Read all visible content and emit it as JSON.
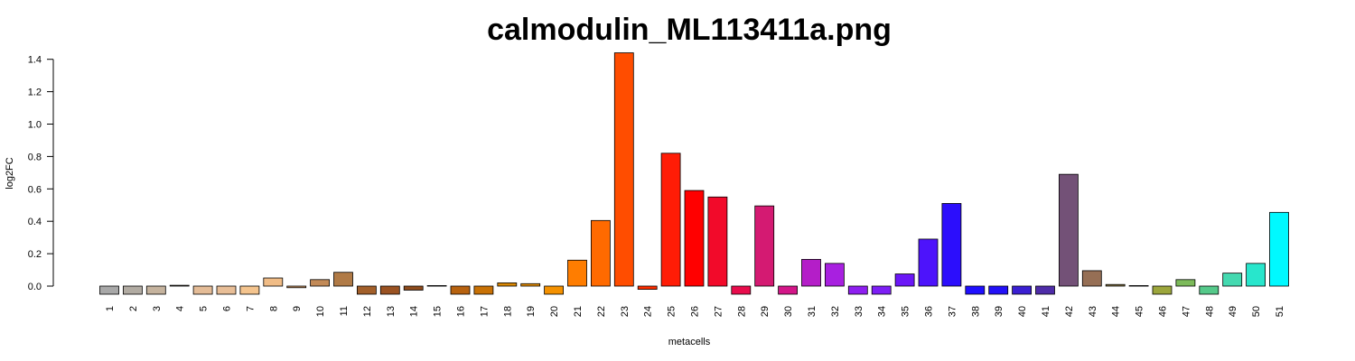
{
  "chart_data": {
    "type": "bar",
    "title": "calmodulin_ML113411a.png",
    "xlabel": "metacells",
    "ylabel": "log2FC",
    "ylim": [
      -0.05,
      1.44
    ],
    "yticks": [
      "0.0",
      "0.2",
      "0.4",
      "0.6",
      "0.8",
      "1.0",
      "1.2",
      "1.4"
    ],
    "yticks_values": [
      0.0,
      0.2,
      0.4,
      0.6,
      0.8,
      1.0,
      1.2,
      1.4
    ],
    "grid": false,
    "legend": "none",
    "categories": [
      "1",
      "2",
      "3",
      "4",
      "5",
      "6",
      "7",
      "8",
      "9",
      "10",
      "11",
      "12",
      "13",
      "14",
      "15",
      "16",
      "17",
      "18",
      "19",
      "20",
      "21",
      "22",
      "23",
      "24",
      "25",
      "26",
      "27",
      "28",
      "29",
      "30",
      "31",
      "32",
      "33",
      "34",
      "35",
      "36",
      "37",
      "38",
      "39",
      "40",
      "41",
      "42",
      "43",
      "44",
      "45",
      "46",
      "47",
      "48",
      "49",
      "50",
      "51"
    ],
    "values": [
      -0.05,
      -0.05,
      -0.05,
      0.005,
      -0.05,
      -0.05,
      -0.05,
      0.05,
      -0.01,
      0.04,
      0.085,
      -0.05,
      -0.05,
      -0.025,
      0.003,
      -0.05,
      -0.05,
      0.02,
      0.015,
      -0.05,
      0.16,
      0.405,
      1.44,
      -0.02,
      0.82,
      0.59,
      0.55,
      -0.05,
      0.495,
      -0.05,
      0.165,
      0.14,
      -0.05,
      -0.05,
      0.075,
      0.29,
      0.51,
      -0.05,
      -0.05,
      -0.05,
      -0.05,
      0.69,
      0.095,
      0.01,
      0.003,
      -0.05,
      0.04,
      -0.05,
      0.08,
      0.14,
      0.455
    ],
    "colors": [
      "#a8a8a8",
      "#b1aba2",
      "#c5b39e",
      "#d7b997",
      "#e4bc97",
      "#e8be97",
      "#f4c48e",
      "#f0bc86",
      "#cc9664",
      "#c28a57",
      "#b07a46",
      "#a25f2a",
      "#9a5222",
      "#8e4b1c",
      "#8a4a1a",
      "#b7620f",
      "#c87105",
      "#d98806",
      "#e58f0a",
      "#f49100",
      "#ff7d00",
      "#ff6a00",
      "#ff4d00",
      "#ff2f00",
      "#ff1c06",
      "#ff0000",
      "#f20a2a",
      "#e80c4c",
      "#d41a72",
      "#d31688",
      "#b41ec8",
      "#a820e0",
      "#8e1ff0",
      "#7d1ef5",
      "#6b17f7",
      "#4d13fb",
      "#2c0efc",
      "#1f0fff",
      "#2210f7",
      "#3a1fd2",
      "#4e2ca8",
      "#735177",
      "#966f55",
      "#8b7b48",
      "#9a8f3c",
      "#9ca63c",
      "#7cba5a",
      "#55c98a",
      "#44d9b0",
      "#28e6cc",
      "#00f9ff"
    ]
  }
}
